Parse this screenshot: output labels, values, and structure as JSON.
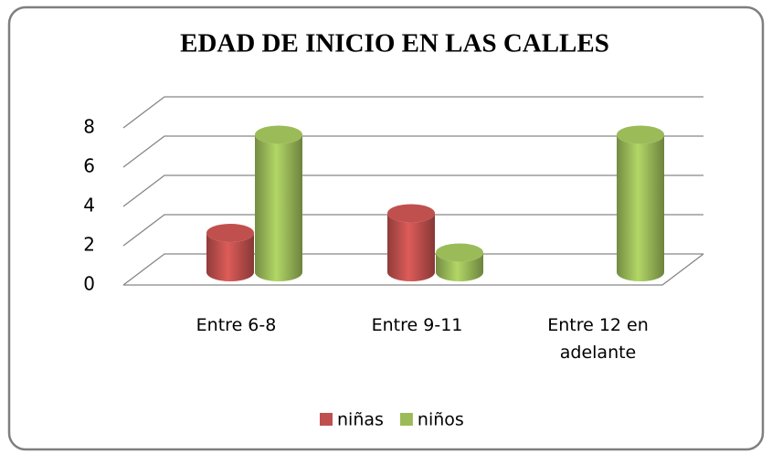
{
  "chart_data": {
    "type": "bar3d",
    "title": "EDAD DE INICIO EN LAS CALLES",
    "categories": [
      "Entre 6-8",
      "Entre 9-11",
      "Entre 12 en adelante"
    ],
    "series": [
      {
        "name": "niñas",
        "color": "#c0504d",
        "values": [
          2,
          3,
          0
        ]
      },
      {
        "name": "niños",
        "color": "#9bbb59",
        "values": [
          7,
          1,
          7
        ]
      }
    ],
    "ylim": [
      0,
      8
    ],
    "yticks": [
      0,
      2,
      4,
      6,
      8
    ],
    "grid": true,
    "legend": "bottom"
  }
}
